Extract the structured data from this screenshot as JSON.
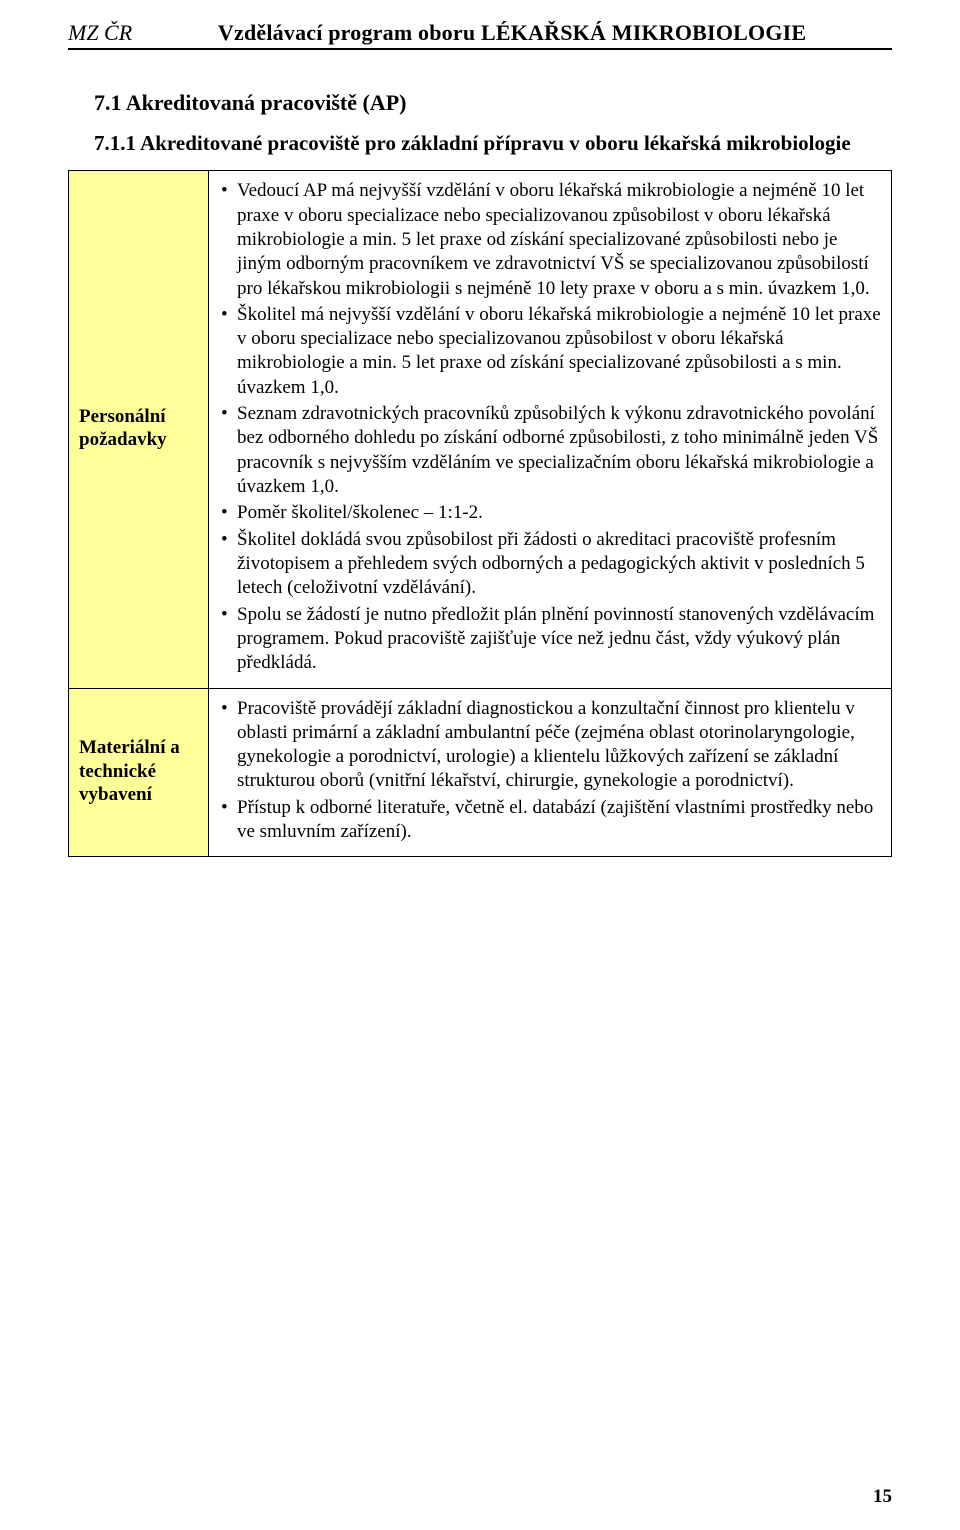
{
  "header": {
    "left": "MZ ČR",
    "right": "Vzdělávací program oboru LÉKAŘSKÁ MIKROBIOLOGIE"
  },
  "headings": {
    "h71": "7.1  Akreditovaná pracoviště (AP)",
    "h711": "7.1.1  Akreditované pracoviště pro základní přípravu v oboru lékařská mikrobiologie"
  },
  "rows": {
    "personal": {
      "label": "Personální požadavky",
      "items": [
        "Vedoucí AP má nejvyšší vzdělání v oboru lékařská mikrobiologie a nejméně 10 let praxe v oboru specializace nebo specializovanou způsobilost v oboru lékařská mikrobiologie a min. 5 let praxe od získání specializované způsobilosti nebo je jiným odborným pracovníkem ve zdravotnictví VŠ se specializovanou způsobilostí pro lékařskou mikrobiologii s nejméně 10 lety praxe v oboru a s min. úvazkem 1,0.",
        "Školitel má nejvyšší vzdělání v oboru lékařská mikrobiologie a nejméně 10 let praxe v oboru specializace nebo specializovanou způsobilost v oboru lékařská mikrobiologie a min. 5 let praxe od získání specializované způsobilosti a s min. úvazkem 1,0.",
        "Seznam zdravotnických pracovníků způsobilých k výkonu zdravotnického povolání bez odborného dohledu po získání odborné způsobilosti, z toho minimálně jeden VŠ pracovník s nejvyšším vzděláním ve specializačním oboru lékařská mikrobiologie a úvazkem 1,0.",
        "Poměr školitel/školenec – 1:1-2.",
        "Školitel dokládá svou způsobilost při žádosti o akreditaci pracoviště profesním životopisem a přehledem svých odborných a pedagogických aktivit v posledních 5 letech (celoživotní vzdělávání).",
        "Spolu se žádostí je nutno předložit plán plnění povinností stanovených vzdělávacím programem. Pokud pracoviště zajišťuje více než jednu část, vždy výukový plán předkládá."
      ]
    },
    "material": {
      "label": "Materiální a technické vybavení",
      "items": [
        "Pracoviště provádějí základní diagnostickou a konzultační činnost pro klientelu v oblasti primární a základní ambulantní péče (zejména oblast otorinolaryngologie, gynekologie a porodnictví, urologie) a klientelu lůžkových zařízení se základní strukturou oborů (vnitřní lékařství, chirurgie, gynekologie a porodnictví).",
        "Přístup k odborné literatuře, včetně el. databází (zajištění vlastními prostředky nebo ve smluvním zařízení)."
      ]
    }
  },
  "page_number": "15"
}
